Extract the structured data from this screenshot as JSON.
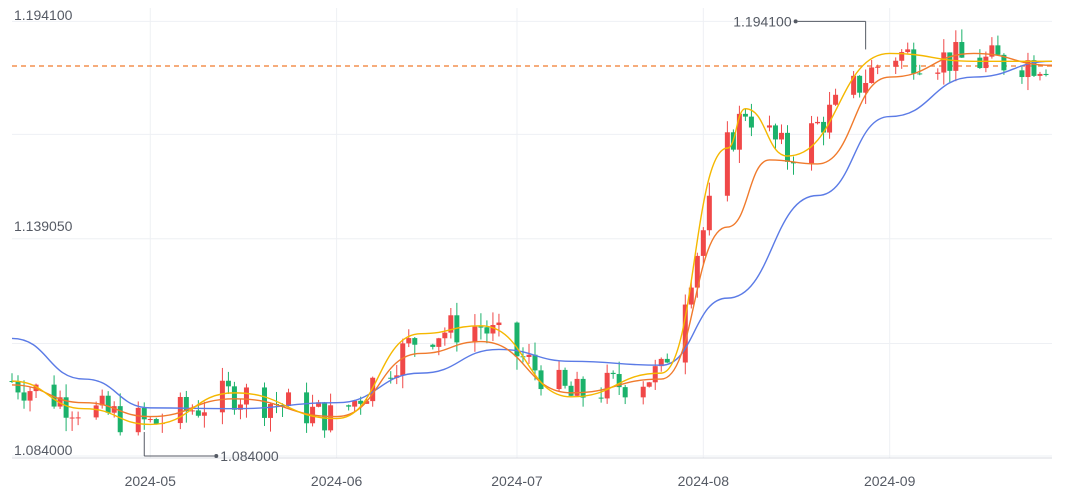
{
  "chart_data": {
    "type": "candlestick",
    "title": "",
    "xlabel": "",
    "ylabel": "",
    "x_range": [
      "2024-04-08",
      "2024-09-28"
    ],
    "ylim": [
      1.0835,
      1.1975
    ],
    "grid": {
      "horizontal": true,
      "vertical": true
    },
    "legend": "none",
    "y_ticks": [
      "1.194100",
      "1.139050",
      "1.084000"
    ],
    "x_ticks": [
      {
        "date": "2024-05-01",
        "label": "2024-05"
      },
      {
        "date": "2024-06-01",
        "label": "2024-06"
      },
      {
        "date": "2024-07-01",
        "label": "2024-07"
      },
      {
        "date": "2024-08-01",
        "label": "2024-08"
      },
      {
        "date": "2024-09-01",
        "label": "2024-09"
      }
    ],
    "annotations": [
      {
        "kind": "max",
        "date": "2024-08-28",
        "value": 1.1941,
        "label": "1.194100"
      },
      {
        "kind": "min",
        "date": "2024-04-30",
        "value": 1.084,
        "label": "1.084000"
      }
    ],
    "reference_line": {
      "value": 1.1828,
      "style": "dashed",
      "color": "#f07a2c"
    },
    "colors": {
      "up": "#f04848",
      "down": "#1bb26b",
      "ma_short": "#f5b800",
      "ma_mid": "#f07a2c",
      "ma_long": "#5b7be6",
      "grid": "#eef0f4"
    },
    "trend_series": [
      {
        "color": "#5b7be6",
        "points": [
          [
            "2024-04-08",
            1.1138
          ],
          [
            "2024-04-20",
            1.1035
          ],
          [
            "2024-05-01",
            1.0962
          ],
          [
            "2024-05-15",
            1.096
          ],
          [
            "2024-06-01",
            1.0975
          ],
          [
            "2024-06-15",
            1.105
          ],
          [
            "2024-06-28",
            1.111
          ],
          [
            "2024-07-10",
            1.108
          ],
          [
            "2024-07-25",
            1.107
          ],
          [
            "2024-08-05",
            1.124
          ],
          [
            "2024-08-20",
            1.15
          ],
          [
            "2024-09-01",
            1.17
          ],
          [
            "2024-09-15",
            1.18
          ],
          [
            "2024-09-28",
            1.184
          ]
        ]
      },
      {
        "color": "#f07a2c",
        "points": [
          [
            "2024-04-08",
            1.102
          ],
          [
            "2024-04-20",
            1.0975
          ],
          [
            "2024-05-01",
            1.094
          ],
          [
            "2024-05-15",
            1.0985
          ],
          [
            "2024-06-01",
            1.094
          ],
          [
            "2024-06-15",
            1.11
          ],
          [
            "2024-06-25",
            1.113
          ],
          [
            "2024-07-10",
            1.1
          ],
          [
            "2024-07-25",
            1.1035
          ],
          [
            "2024-08-05",
            1.142
          ],
          [
            "2024-08-12",
            1.159
          ],
          [
            "2024-08-20",
            1.158
          ],
          [
            "2024-09-01",
            1.18
          ],
          [
            "2024-09-15",
            1.186
          ],
          [
            "2024-09-28",
            1.183
          ]
        ]
      },
      {
        "color": "#f5b800",
        "points": [
          [
            "2024-04-08",
            1.103
          ],
          [
            "2024-04-20",
            1.096
          ],
          [
            "2024-05-01",
            1.092
          ],
          [
            "2024-05-15",
            1.1
          ],
          [
            "2024-06-01",
            1.0935
          ],
          [
            "2024-06-15",
            1.115
          ],
          [
            "2024-06-25",
            1.117
          ],
          [
            "2024-07-10",
            1.099
          ],
          [
            "2024-07-25",
            1.105
          ],
          [
            "2024-08-05",
            1.162
          ],
          [
            "2024-08-08",
            1.172
          ],
          [
            "2024-08-15",
            1.16
          ],
          [
            "2024-09-01",
            1.186
          ],
          [
            "2024-09-15",
            1.184
          ],
          [
            "2024-09-28",
            1.184
          ]
        ]
      }
    ]
  }
}
